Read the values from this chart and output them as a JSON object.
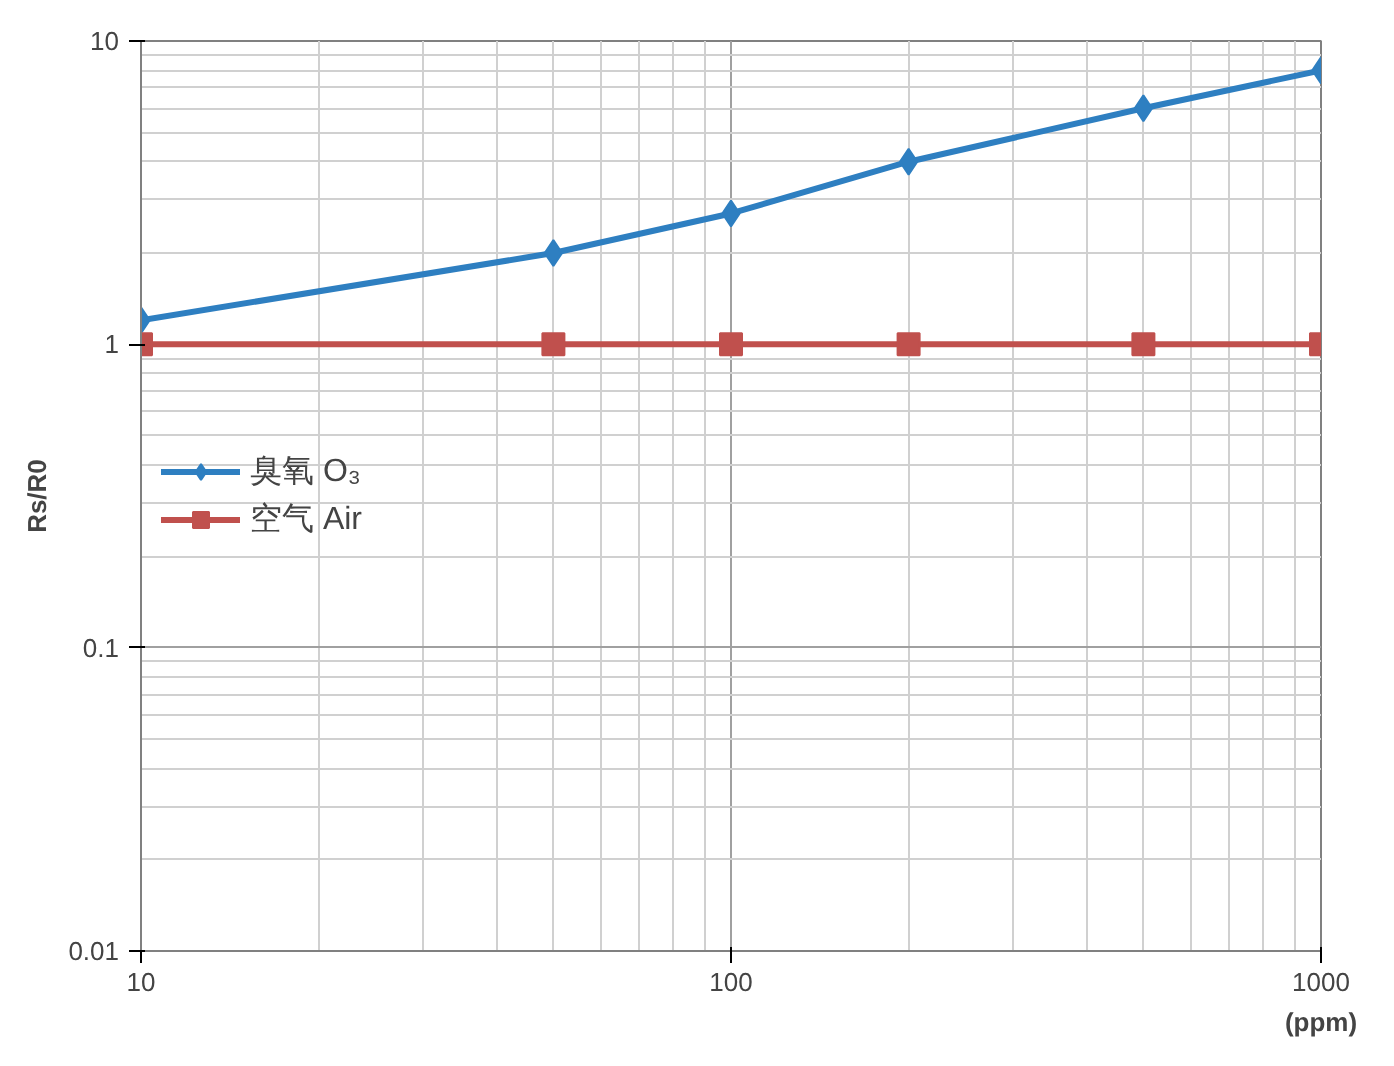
{
  "chart_data": {
    "type": "line",
    "xlabel": "(ppm)",
    "ylabel": "Rs/R0",
    "log": "xy",
    "x": [
      10,
      50,
      100,
      200,
      500,
      1000
    ],
    "xlim": [
      10,
      1000
    ],
    "ylim": [
      0.01,
      10
    ],
    "xticks": [
      10,
      100,
      1000
    ],
    "yticks": [
      0.01,
      0.1,
      1,
      10
    ],
    "grid": true,
    "legend": "left",
    "series": [
      {
        "name": "臭氧 O₃",
        "color": "#2e7fc1",
        "marker": "diamond",
        "values": [
          1.2,
          2.0,
          2.7,
          4.0,
          6.0,
          8.0
        ]
      },
      {
        "name": "空气 Air",
        "color": "#c0504d",
        "marker": "square",
        "values": [
          1.0,
          1.0,
          1.0,
          1.0,
          1.0,
          1.0
        ]
      }
    ]
  }
}
